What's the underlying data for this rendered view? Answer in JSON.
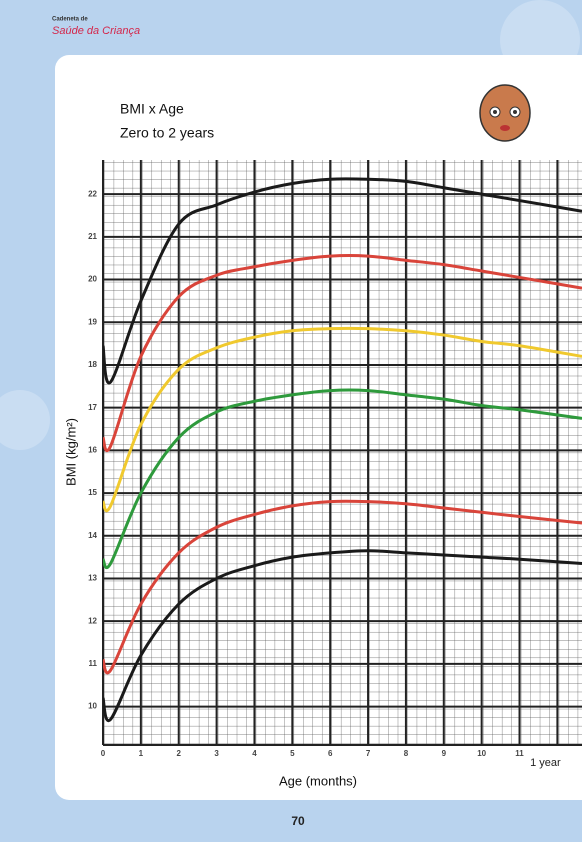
{
  "header": {
    "small": "Cadeneta de",
    "brand": "Saúde da Criança"
  },
  "page_number": "70",
  "chart_data": {
    "type": "line",
    "title": "BMI x Age",
    "subtitle": "Zero to 2 years",
    "x_label": "Age (months)",
    "y_label": "BMI (kg/m²)",
    "x": [
      0,
      0.2,
      1,
      2,
      3,
      4,
      5,
      6,
      7,
      8,
      9,
      10,
      11,
      12.65
    ],
    "series": [
      {
        "color": "#1a1a1a",
        "values": [
          18.45,
          17.6,
          19.5,
          21.3,
          21.75,
          22.05,
          22.25,
          22.35,
          22.35,
          22.3,
          22.15,
          22.0,
          21.85,
          21.6
        ]
      },
      {
        "color": "#d9443a",
        "values": [
          16.3,
          16.1,
          18.2,
          19.6,
          20.1,
          20.3,
          20.45,
          20.55,
          20.55,
          20.45,
          20.35,
          20.2,
          20.05,
          19.8
        ]
      },
      {
        "color": "#f0c92e",
        "values": [
          14.8,
          14.7,
          16.6,
          17.9,
          18.4,
          18.65,
          18.8,
          18.85,
          18.85,
          18.8,
          18.7,
          18.55,
          18.45,
          18.2
        ]
      },
      {
        "color": "#2e9a3c",
        "values": [
          13.45,
          13.35,
          15.0,
          16.3,
          16.9,
          17.15,
          17.3,
          17.4,
          17.4,
          17.3,
          17.2,
          17.05,
          16.95,
          16.75
        ]
      },
      {
        "color": "#d9443a",
        "values": [
          11.1,
          10.85,
          12.4,
          13.6,
          14.2,
          14.5,
          14.7,
          14.8,
          14.8,
          14.75,
          14.65,
          14.55,
          14.45,
          14.3
        ]
      },
      {
        "color": "#1a1a1a",
        "values": [
          10.2,
          9.7,
          11.2,
          12.4,
          13.0,
          13.3,
          13.5,
          13.6,
          13.65,
          13.6,
          13.55,
          13.5,
          13.45,
          13.35
        ]
      }
    ],
    "xlim": [
      0,
      12.65
    ],
    "ylim": [
      9.1,
      22.8
    ],
    "xticks": [
      0,
      1,
      2,
      3,
      4,
      5,
      6,
      7,
      8,
      9,
      10,
      11,
      {
        "value": 12,
        "label": "1 year"
      }
    ],
    "yticks": [
      10,
      11,
      12,
      13,
      14,
      15,
      16,
      17,
      18,
      19,
      20,
      21,
      22
    ],
    "grid": true
  }
}
